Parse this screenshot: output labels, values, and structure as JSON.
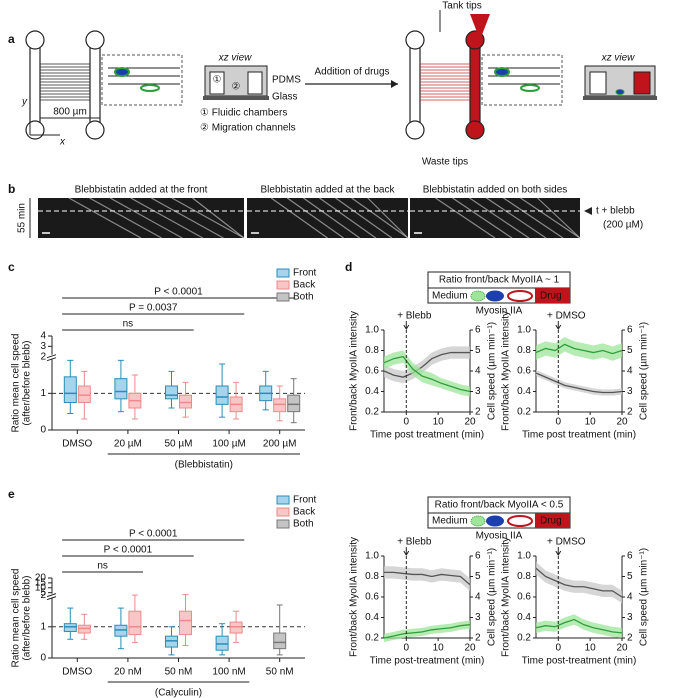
{
  "panel_labels": [
    "a",
    "b",
    "c",
    "d",
    "e"
  ],
  "panel_a": {
    "axis_x": "x",
    "axis_y": "y",
    "scale": "800 µm",
    "xz_title": "xz view",
    "xz_labels": [
      "①",
      "②"
    ],
    "pdms": "PDMS",
    "glass": "Glass",
    "legend": [
      "① Fluidic chambers",
      "② Migration channels"
    ],
    "arrow": "Addition of drugs",
    "tank": "Tank tips",
    "waste": "Waste tips",
    "xz_title_right": "xz view"
  },
  "panel_b": {
    "titles": [
      "Blebbistatin added at the front",
      "Blebbistatin added at the back",
      "Blebbistatin added on both sides"
    ],
    "duration": "55 min",
    "marker": "t + blebb",
    "marker_sub": "(200 µM)"
  },
  "panel_d": {
    "schematics": [
      {
        "title": "Ratio front/back MyoIIA ~ 1",
        "medium": "Medium",
        "drug": "Drug",
        "protein": "Myosin IIA"
      },
      {
        "title": "Ratio front/back MyoIIA < 0.5",
        "medium": "Medium",
        "drug": "Drug",
        "protein": "Myosin IIA"
      }
    ]
  },
  "chart_data": [
    {
      "type": "box",
      "y_label": [
        "Ratio mean cell speed",
        "(after/before blebb)"
      ],
      "categories": [
        "DMSO",
        "20 µM",
        "50 µM",
        "100 µM",
        "200 µM"
      ],
      "group_label": "(Blebbistatin)",
      "series": [
        {
          "name": "Front",
          "color": "#a5d5ec",
          "edge": "#2a8db8",
          "values": [
            {
              "low": 0.45,
              "q1": 0.75,
              "median": 1.0,
              "q3": 1.45,
              "high": 1.9
            },
            {
              "low": 0.5,
              "q1": 0.85,
              "median": 1.05,
              "q3": 1.4,
              "high": 1.9
            },
            {
              "low": 0.6,
              "q1": 0.85,
              "median": 0.95,
              "q3": 1.2,
              "high": 1.6
            },
            {
              "low": 0.35,
              "q1": 0.7,
              "median": 0.9,
              "q3": 1.2,
              "high": 1.8
            },
            {
              "low": 0.55,
              "q1": 0.8,
              "median": 1.0,
              "q3": 1.2,
              "high": 1.6
            }
          ]
        },
        {
          "name": "Back",
          "color": "#f8c6c6",
          "edge": "#ee8a8a",
          "values": [
            {
              "low": 0.3,
              "q1": 0.75,
              "median": 0.95,
              "q3": 1.2,
              "high": 1.6
            },
            {
              "low": 0.3,
              "q1": 0.6,
              "median": 0.8,
              "q3": 1.0,
              "high": 1.5
            },
            {
              "low": 0.35,
              "q1": 0.6,
              "median": 0.75,
              "q3": 0.95,
              "high": 1.3
            },
            {
              "low": 0.3,
              "q1": 0.5,
              "median": 0.7,
              "q3": 0.9,
              "high": 1.3
            },
            {
              "low": 0.25,
              "q1": 0.5,
              "median": 0.7,
              "q3": 0.85,
              "high": 1.2
            }
          ]
        },
        {
          "name": "Both",
          "color": "#c4c4c4",
          "edge": "#777777",
          "values": [
            null,
            null,
            null,
            null,
            {
              "low": 0.2,
              "q1": 0.5,
              "median": 0.7,
              "q3": 0.95,
              "high": 1.4
            }
          ]
        }
      ],
      "ylim": [
        0,
        4
      ],
      "yticks": [
        0,
        1,
        2,
        3,
        4
      ],
      "axis_break": 2,
      "reference_line": 1,
      "annotations": [
        "P < 0.0001",
        "P = 0.0037",
        "ns"
      ],
      "legend": "top-right"
    },
    {
      "type": "line",
      "event": {
        "label": "+ Blebb",
        "x": 0
      },
      "x": [
        -7,
        -4,
        -1,
        2,
        5,
        8,
        11,
        14,
        17,
        20
      ],
      "xlim": [
        -7,
        20
      ],
      "xticks": [
        0,
        10,
        20
      ],
      "ylim": [
        0.2,
        1
      ],
      "yticks": [
        0.2,
        0.4,
        0.6,
        0.8,
        {
          "value": 1,
          "label": "1.0"
        }
      ],
      "y2lim": [
        2,
        6
      ],
      "y2ticks": [
        2,
        3,
        4,
        5,
        6
      ],
      "x_label": "Time post treatment (min)",
      "y_label": "Front/back MyoIIA intensity",
      "y2_label": "Cell speed (µm min⁻¹)",
      "series": [
        {
          "color": "#2e9e3a",
          "band": "#9ee59a",
          "values": [
            0.68,
            0.72,
            0.74,
            0.62,
            0.55,
            0.52,
            0.48,
            0.45,
            0.42,
            0.4
          ],
          "errors": [
            0.06,
            0.06,
            0.06,
            0.06,
            0.06,
            0.06,
            0.05,
            0.05,
            0.05,
            0.05
          ]
        },
        {
          "axis": "y2",
          "color": "#555555",
          "band": "#c8c8c8",
          "values": [
            4.0,
            3.8,
            3.7,
            3.9,
            4.2,
            4.6,
            4.8,
            4.9,
            4.9,
            4.9
          ],
          "errors": [
            0.3,
            0.3,
            0.3,
            0.3,
            0.3,
            0.3,
            0.3,
            0.3,
            0.3,
            0.3
          ]
        }
      ]
    },
    {
      "type": "line",
      "event": {
        "label": "+ DMSO",
        "x": 0
      },
      "x": [
        -7,
        -4,
        -1,
        2,
        5,
        8,
        11,
        14,
        17,
        20
      ],
      "xlim": [
        -7,
        20
      ],
      "xticks": [
        0,
        10,
        20
      ],
      "ylim": [
        0.2,
        1
      ],
      "yticks": [
        0.2,
        0.4,
        0.6,
        0.8,
        {
          "value": 1,
          "label": "1.0"
        }
      ],
      "y2lim": [
        2,
        6
      ],
      "y2ticks": [
        2,
        3,
        4,
        5,
        6
      ],
      "x_label": "Time post treatment (min)",
      "y_label": "Front/back MyoIIA intensity",
      "y2_label": "Cell speed (µm min⁻¹)",
      "series": [
        {
          "color": "#2e9e3a",
          "band": "#9ee59a",
          "values": [
            0.78,
            0.82,
            0.8,
            0.86,
            0.82,
            0.8,
            0.78,
            0.8,
            0.77,
            0.8
          ],
          "errors": [
            0.07,
            0.07,
            0.07,
            0.07,
            0.07,
            0.07,
            0.07,
            0.07,
            0.07,
            0.07
          ]
        },
        {
          "axis": "y2",
          "color": "#555555",
          "band": "#c8c8c8",
          "values": [
            3.9,
            3.7,
            3.5,
            3.3,
            3.2,
            3.1,
            3.0,
            2.95,
            2.95,
            3.0
          ],
          "errors": [
            0.15,
            0.15,
            0.15,
            0.15,
            0.15,
            0.15,
            0.15,
            0.15,
            0.15,
            0.15
          ]
        }
      ]
    },
    {
      "type": "line",
      "event": {
        "label": "+ Blebb",
        "x": 0
      },
      "x": [
        -7,
        -4,
        -1,
        2,
        5,
        8,
        11,
        14,
        17,
        20
      ],
      "xlim": [
        -7,
        20
      ],
      "xticks": [
        0,
        10,
        20
      ],
      "ylim": [
        0.2,
        1
      ],
      "yticks": [
        0.2,
        0.4,
        0.6,
        0.8,
        {
          "value": 1,
          "label": "1.0"
        }
      ],
      "y2lim": [
        2,
        6
      ],
      "y2ticks": [
        2,
        3,
        4,
        5,
        6
      ],
      "x_label": "Time post-treatment (min)",
      "y_label": "Front/back MyoIIA intensity",
      "y2_label": "Cell speed (µm min⁻¹)",
      "series": [
        {
          "color": "#2e9e3a",
          "band": "#9ee59a",
          "values": [
            0.2,
            0.22,
            0.24,
            0.25,
            0.26,
            0.28,
            0.29,
            0.3,
            0.32,
            0.33
          ],
          "errors": [
            0.04,
            0.04,
            0.04,
            0.04,
            0.04,
            0.04,
            0.04,
            0.04,
            0.04,
            0.04
          ]
        },
        {
          "axis": "y2",
          "color": "#555555",
          "band": "#c8c8c8",
          "values": [
            5.2,
            5.2,
            5.15,
            5.1,
            5.1,
            5.0,
            5.1,
            5.05,
            5.0,
            4.6
          ],
          "errors": [
            0.3,
            0.3,
            0.3,
            0.3,
            0.3,
            0.3,
            0.3,
            0.3,
            0.3,
            0.3
          ]
        }
      ]
    },
    {
      "type": "line",
      "event": {
        "label": "+ DMSO",
        "x": 0
      },
      "x": [
        -7,
        -4,
        -1,
        2,
        5,
        8,
        11,
        14,
        17,
        20
      ],
      "xlim": [
        -7,
        20
      ],
      "xticks": [
        0,
        10,
        20
      ],
      "ylim": [
        0.2,
        1
      ],
      "yticks": [
        0.2,
        0.4,
        0.6,
        0.8,
        {
          "value": 1,
          "label": "1.0"
        }
      ],
      "y2lim": [
        2,
        6
      ],
      "y2ticks": [
        2,
        3,
        4,
        5,
        6
      ],
      "x_label": "Time post-treatment (min)",
      "y_label": "Front/back MyoIIA intensity",
      "y2_label": "Cell speed (µm min⁻¹)",
      "series": [
        {
          "color": "#2e9e3a",
          "band": "#9ee59a",
          "values": [
            0.3,
            0.32,
            0.31,
            0.35,
            0.38,
            0.33,
            0.3,
            0.28,
            0.26,
            0.25
          ],
          "errors": [
            0.05,
            0.05,
            0.05,
            0.05,
            0.05,
            0.05,
            0.05,
            0.05,
            0.05,
            0.05
          ]
        },
        {
          "axis": "y2",
          "color": "#555555",
          "band": "#c8c8c8",
          "values": [
            5.4,
            5.0,
            4.8,
            4.6,
            4.5,
            4.5,
            4.4,
            4.3,
            4.3,
            4.0
          ],
          "errors": [
            0.3,
            0.3,
            0.3,
            0.3,
            0.3,
            0.3,
            0.3,
            0.3,
            0.3,
            0.3
          ]
        }
      ]
    },
    {
      "type": "box",
      "y_label": [
        "Ratio mean cell speed",
        "(after/before blebb)"
      ],
      "categories": [
        "DMSO",
        "20 nM",
        "50 nM",
        "100 nM",
        "50 nM"
      ],
      "group_label": "(Calyculin)",
      "series": [
        {
          "name": "Front",
          "color": "#a5d5ec",
          "edge": "#2a8db8",
          "values": [
            {
              "low": 0.6,
              "q1": 0.85,
              "median": 1.0,
              "q3": 1.1,
              "high": 1.6
            },
            {
              "low": 0.3,
              "q1": 0.7,
              "median": 0.9,
              "q3": 1.05,
              "high": 1.6
            },
            {
              "low": 0.1,
              "q1": 0.35,
              "median": 0.55,
              "q3": 0.7,
              "high": 1.0
            },
            {
              "low": 0.1,
              "q1": 0.25,
              "median": 0.45,
              "q3": 0.7,
              "high": 1.1
            },
            null
          ]
        },
        {
          "name": "Back",
          "color": "#f8c6c6",
          "edge": "#ee8a8a",
          "values": [
            {
              "low": 0.6,
              "q1": 0.8,
              "median": 0.95,
              "q3": 1.05,
              "high": 1.4
            },
            {
              "low": 0.5,
              "q1": 0.75,
              "median": 1.0,
              "q3": 1.5,
              "high": 2.5
            },
            {
              "low": 0.4,
              "q1": 0.75,
              "median": 1.2,
              "q3": 1.5,
              "high": 3
            },
            {
              "low": 0.5,
              "q1": 0.8,
              "median": 1.0,
              "q3": 1.15,
              "high": 1.5
            },
            null
          ]
        },
        {
          "name": "Both",
          "color": "#c4c4c4",
          "edge": "#777777",
          "values": [
            null,
            null,
            null,
            null,
            {
              "low": 0.1,
              "q1": 0.3,
              "median": 0.5,
              "q3": 0.8,
              "high": 1.7
            }
          ]
        }
      ],
      "ylim": [
        0,
        20
      ],
      "yticks": [
        0,
        1,
        2,
        5,
        10,
        15,
        20
      ],
      "axis_break": 2,
      "reference_line": 1,
      "annotations": [
        "P < 0.0001",
        "P < 0.0001",
        "ns"
      ],
      "legend": "top-right"
    }
  ]
}
